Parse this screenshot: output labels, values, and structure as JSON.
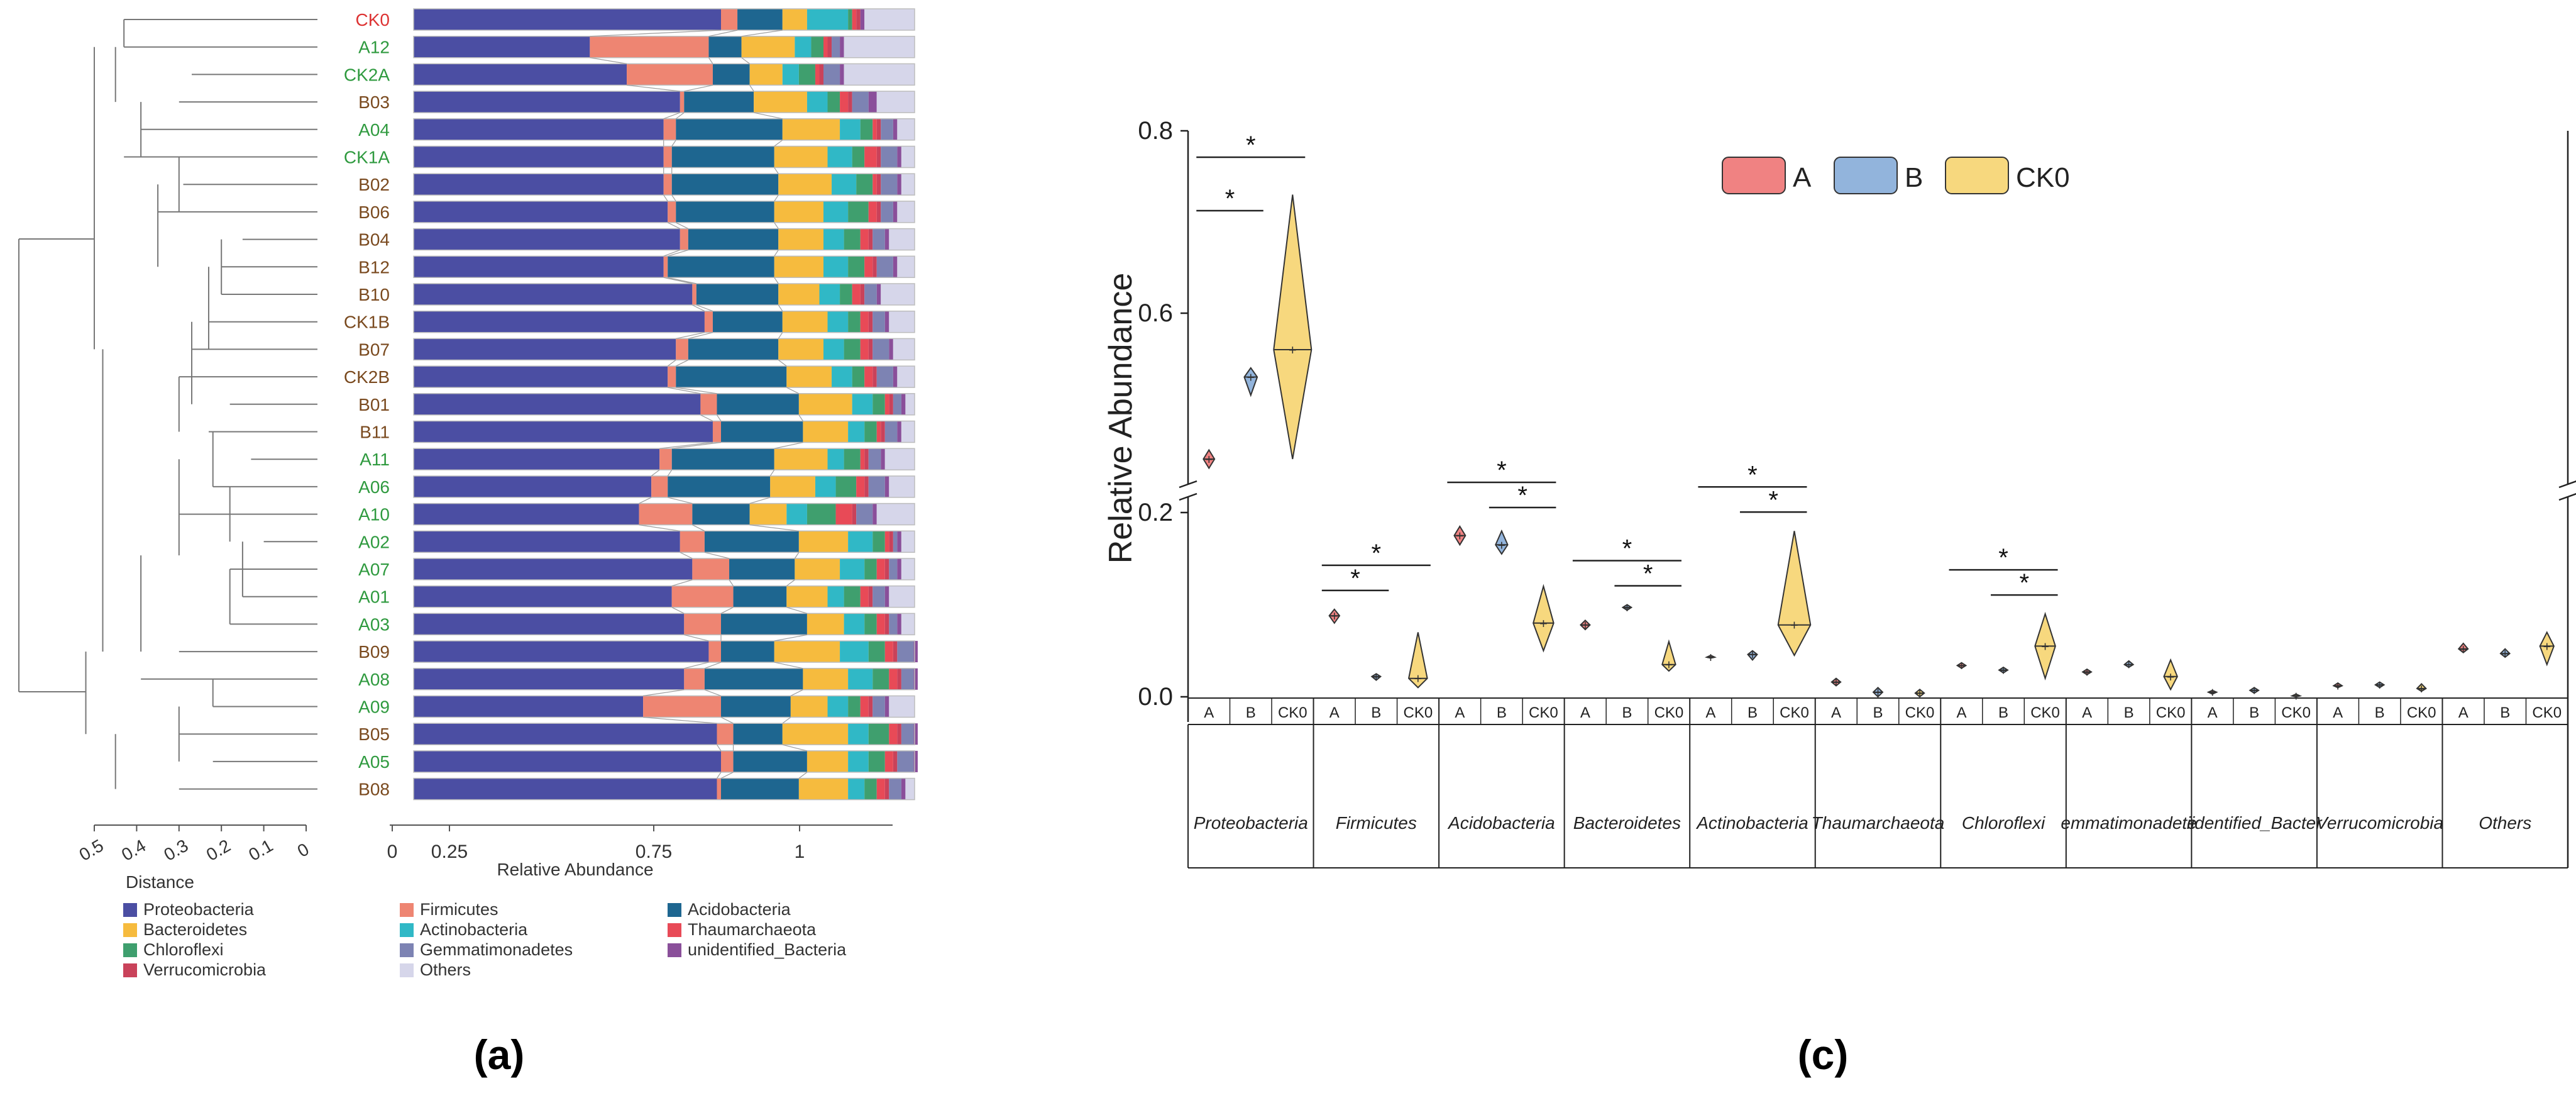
{
  "panel_labels": {
    "a": "(a)",
    "c": "(c)"
  },
  "colors": {
    "Proteobacteria": "#4b4ea3",
    "Firmicutes": "#ee8572",
    "Acidobacteria": "#1e6690",
    "Bacteroidetes": "#f6bb3e",
    "Actinobacteria": "#30b8c6",
    "Chloroflexi": "#3f9f6e",
    "Thaumarchaeota": "#e84a57",
    "Verrucomicrobia": "#c9425a",
    "Gemmatimonadetes": "#7d83b3",
    "unidentified_Bacteria": "#8a4f9a",
    "Others": "#d6d6ea",
    "group_A": "#f08282",
    "group_B": "#92b4dc",
    "group_CK0": "#f7d87e",
    "label_red": "#d33",
    "label_green": "#2f9a3f",
    "label_brown": "#7a4a1f"
  },
  "chart_data": [
    {
      "type": "bar",
      "orientation": "horizontal_stacked",
      "panel": "a",
      "xlabel": "Relative Abundance",
      "xticks": [
        "0",
        "0.25",
        "0.75",
        "1"
      ],
      "xtick_values": [
        0,
        0.25,
        0.75,
        1.0
      ],
      "xlim": [
        0,
        1.22
      ],
      "dendrogram_xlabel": "Distance",
      "dendrogram_ticks": [
        "0.5",
        "0.4",
        "0.3",
        "0.2",
        "0.1",
        "0"
      ],
      "samples": [
        "CK0",
        "A12",
        "CK2A",
        "B03",
        "A04",
        "CK1A",
        "B02",
        "B06",
        "B04",
        "B12",
        "B10",
        "CK1B",
        "B07",
        "CK2B",
        "B01",
        "B11",
        "A11",
        "A06",
        "A10",
        "A02",
        "A07",
        "A01",
        "A03",
        "B09",
        "A08",
        "A09",
        "B05",
        "A05",
        "B08"
      ],
      "sample_label_colors": [
        "red",
        "green",
        "green",
        "brown",
        "green",
        "green",
        "brown",
        "brown",
        "brown",
        "brown",
        "brown",
        "brown",
        "brown",
        "brown",
        "brown",
        "brown",
        "green",
        "green",
        "green",
        "green",
        "green",
        "green",
        "green",
        "brown",
        "green",
        "green",
        "brown",
        "green",
        "brown"
      ],
      "series_names": [
        "Proteobacteria",
        "Firmicutes",
        "Acidobacteria",
        "Bacteroidetes",
        "Actinobacteria",
        "Chloroflexi",
        "Thaumarchaeota",
        "Verrucomicrobia",
        "Gemmatimonadetes",
        "unidentified_Bacteria",
        "Others"
      ],
      "values": [
        [
          0.75,
          0.04,
          0.11,
          0.06,
          0.1,
          0.01,
          0.01,
          0.01,
          0.0,
          0.01,
          0.08
        ],
        [
          0.43,
          0.29,
          0.08,
          0.13,
          0.04,
          0.03,
          0.01,
          0.01,
          0.02,
          0.01,
          0.05
        ],
        [
          0.52,
          0.21,
          0.09,
          0.08,
          0.04,
          0.04,
          0.01,
          0.01,
          0.04,
          0.01,
          0.07
        ],
        [
          0.65,
          0.01,
          0.17,
          0.13,
          0.05,
          0.03,
          0.02,
          0.01,
          0.04,
          0.02,
          0.09
        ],
        [
          0.61,
          0.03,
          0.26,
          0.14,
          0.05,
          0.03,
          0.01,
          0.01,
          0.03,
          0.01,
          0.06
        ],
        [
          0.61,
          0.02,
          0.25,
          0.13,
          0.06,
          0.03,
          0.03,
          0.01,
          0.04,
          0.01,
          0.05
        ],
        [
          0.61,
          0.02,
          0.26,
          0.13,
          0.06,
          0.04,
          0.01,
          0.01,
          0.04,
          0.01,
          0.05
        ],
        [
          0.62,
          0.02,
          0.24,
          0.12,
          0.06,
          0.05,
          0.02,
          0.01,
          0.03,
          0.01,
          0.05
        ],
        [
          0.65,
          0.02,
          0.22,
          0.11,
          0.05,
          0.04,
          0.02,
          0.01,
          0.03,
          0.01,
          0.06
        ],
        [
          0.61,
          0.01,
          0.26,
          0.12,
          0.06,
          0.04,
          0.02,
          0.01,
          0.04,
          0.01,
          0.06
        ],
        [
          0.68,
          0.01,
          0.2,
          0.1,
          0.05,
          0.03,
          0.02,
          0.01,
          0.03,
          0.01,
          0.07
        ],
        [
          0.71,
          0.02,
          0.17,
          0.11,
          0.05,
          0.03,
          0.02,
          0.01,
          0.03,
          0.01,
          0.07
        ],
        [
          0.64,
          0.03,
          0.22,
          0.11,
          0.05,
          0.04,
          0.02,
          0.01,
          0.04,
          0.01,
          0.06
        ],
        [
          0.62,
          0.02,
          0.27,
          0.11,
          0.05,
          0.03,
          0.02,
          0.01,
          0.04,
          0.01,
          0.05
        ],
        [
          0.7,
          0.04,
          0.2,
          0.13,
          0.05,
          0.03,
          0.01,
          0.01,
          0.02,
          0.01,
          0.05
        ],
        [
          0.73,
          0.02,
          0.2,
          0.11,
          0.04,
          0.03,
          0.01,
          0.01,
          0.03,
          0.01,
          0.04
        ],
        [
          0.6,
          0.03,
          0.25,
          0.13,
          0.04,
          0.04,
          0.01,
          0.01,
          0.03,
          0.01,
          0.08
        ],
        [
          0.58,
          0.04,
          0.25,
          0.11,
          0.05,
          0.05,
          0.02,
          0.01,
          0.04,
          0.01,
          0.07
        ],
        [
          0.55,
          0.13,
          0.14,
          0.09,
          0.05,
          0.07,
          0.04,
          0.01,
          0.04,
          0.01,
          0.07
        ],
        [
          0.65,
          0.06,
          0.23,
          0.12,
          0.06,
          0.03,
          0.01,
          0.01,
          0.01,
          0.01,
          0.06
        ],
        [
          0.68,
          0.09,
          0.16,
          0.11,
          0.06,
          0.03,
          0.02,
          0.01,
          0.02,
          0.01,
          0.05
        ],
        [
          0.63,
          0.15,
          0.13,
          0.1,
          0.04,
          0.04,
          0.02,
          0.01,
          0.03,
          0.01,
          0.07
        ],
        [
          0.66,
          0.09,
          0.21,
          0.09,
          0.05,
          0.03,
          0.02,
          0.01,
          0.02,
          0.01,
          0.05
        ],
        [
          0.72,
          0.03,
          0.13,
          0.16,
          0.07,
          0.04,
          0.02,
          0.01,
          0.04,
          0.01,
          0.03
        ],
        [
          0.66,
          0.05,
          0.24,
          0.11,
          0.06,
          0.04,
          0.02,
          0.01,
          0.03,
          0.01,
          0.04
        ],
        [
          0.56,
          0.19,
          0.17,
          0.09,
          0.05,
          0.03,
          0.02,
          0.01,
          0.03,
          0.01,
          0.07
        ],
        [
          0.74,
          0.04,
          0.12,
          0.16,
          0.05,
          0.05,
          0.02,
          0.01,
          0.03,
          0.01,
          0.04
        ],
        [
          0.75,
          0.03,
          0.18,
          0.1,
          0.05,
          0.04,
          0.02,
          0.01,
          0.04,
          0.01,
          0.04
        ],
        [
          0.74,
          0.01,
          0.19,
          0.12,
          0.04,
          0.03,
          0.02,
          0.01,
          0.03,
          0.01,
          0.05
        ]
      ],
      "legend": [
        "Proteobacteria",
        "Firmicutes",
        "Acidobacteria",
        "Bacteroidetes",
        "Actinobacteria",
        "Thaumarchaeota",
        "Chloroflexi",
        "Gemmatimonadetes",
        "unidentified_Bacteria",
        "Verrucomicrobia",
        "Others"
      ]
    },
    {
      "type": "violin",
      "panel": "c",
      "ylabel": "Relative Abundance",
      "yticks": [
        "0.0",
        "0.2",
        "0.6",
        "0.8"
      ],
      "y_break": "between 0.2 and 0.6 (axis break)",
      "legend": [
        "A",
        "B",
        "CK0"
      ],
      "group_labels": [
        "A",
        "B",
        "CK0"
      ],
      "significance_marker": "*",
      "categories": [
        "Proteobacteria",
        "Firmicutes",
        "Acidobacteria",
        "Bacteroidetes",
        "Actinobacteria",
        "Thaumarchaeota",
        "Chloroflexi",
        "emmatimonadete",
        "iidentified_Bacter",
        "Verrucomicrobia",
        "Others"
      ],
      "series": [
        {
          "name": "A",
          "min": [
            0.43,
            0.08,
            0.165,
            0.073,
            0.042,
            0.012,
            0.031,
            0.024,
            0.003,
            0.01,
            0.048
          ],
          "max": [
            0.45,
            0.095,
            0.185,
            0.083,
            0.045,
            0.02,
            0.037,
            0.03,
            0.007,
            0.015,
            0.058
          ],
          "median": [
            0.44,
            0.088,
            0.175,
            0.078,
            0.043,
            0.016,
            0.034,
            0.027,
            0.005,
            0.012,
            0.052
          ]
        },
        {
          "name": "B",
          "min": [
            0.51,
            0.018,
            0.155,
            0.094,
            0.04,
            0.0,
            0.026,
            0.032,
            0.004,
            0.01,
            0.043
          ],
          "max": [
            0.54,
            0.025,
            0.18,
            0.1,
            0.05,
            0.01,
            0.032,
            0.039,
            0.01,
            0.016,
            0.052
          ],
          "median": [
            0.53,
            0.022,
            0.165,
            0.097,
            0.046,
            0.005,
            0.029,
            0.035,
            0.007,
            0.013,
            0.047
          ]
        },
        {
          "name": "CK0",
          "min": [
            0.44,
            0.01,
            0.05,
            0.028,
            0.045,
            0.0,
            0.02,
            0.008,
            0.0,
            0.006,
            0.035
          ],
          "max": [
            0.73,
            0.07,
            0.12,
            0.06,
            0.18,
            0.008,
            0.09,
            0.04,
            0.003,
            0.014,
            0.07
          ],
          "median": [
            0.56,
            0.02,
            0.08,
            0.035,
            0.078,
            0.004,
            0.055,
            0.022,
            0.001,
            0.009,
            0.055
          ]
        }
      ],
      "significance": [
        {
          "category": "Proteobacteria",
          "pairs": [
            "A-B",
            "A-CK0"
          ]
        },
        {
          "category": "Firmicutes",
          "pairs": [
            "A-B",
            "A-CK0"
          ]
        },
        {
          "category": "Acidobacteria",
          "pairs": [
            "A-CK0",
            "B-CK0"
          ]
        },
        {
          "category": "Bacteroidetes",
          "pairs": [
            "A-CK0",
            "B-CK0"
          ]
        },
        {
          "category": "Actinobacteria",
          "pairs": [
            "A-CK0",
            "B-CK0"
          ]
        },
        {
          "category": "Chloroflexi",
          "pairs": [
            "A-CK0",
            "B-CK0"
          ]
        }
      ]
    }
  ]
}
